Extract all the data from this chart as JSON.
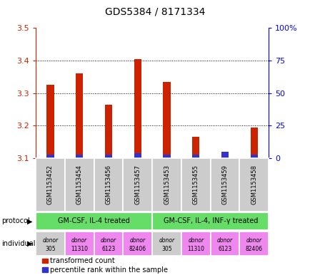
{
  "title": "GDS5384 / 8171334",
  "samples": [
    "GSM1153452",
    "GSM1153454",
    "GSM1153456",
    "GSM1153457",
    "GSM1153453",
    "GSM1153455",
    "GSM1153459",
    "GSM1153458"
  ],
  "transformed_counts": [
    3.325,
    3.36,
    3.265,
    3.405,
    3.335,
    3.165,
    3.1,
    3.195
  ],
  "percentile_ranks": [
    3.0,
    3.0,
    3.0,
    4.0,
    3.0,
    3.0,
    5.0,
    3.0
  ],
  "bar_base": 3.1,
  "ylim": [
    3.1,
    3.5
  ],
  "y_ticks_left": [
    3.1,
    3.2,
    3.3,
    3.4,
    3.5
  ],
  "y_ticks_right": [
    0,
    25,
    50,
    75,
    100
  ],
  "red_color": "#cc2200",
  "blue_color": "#3333cc",
  "protocol_groups": [
    {
      "label": "GM-CSF, IL-4 treated",
      "start": 0,
      "end": 3
    },
    {
      "label": "GM-CSF, IL-4, INF-γ treated",
      "start": 4,
      "end": 7
    }
  ],
  "protocol_bg": "#66dd66",
  "individual_labels": [
    [
      "donor",
      "305"
    ],
    [
      "donor",
      "11310"
    ],
    [
      "donor",
      "6123"
    ],
    [
      "donor",
      "82406"
    ],
    [
      "donor",
      "305"
    ],
    [
      "donor",
      "11310"
    ],
    [
      "donor",
      "6123"
    ],
    [
      "donor",
      "82406"
    ]
  ],
  "individual_colors": [
    "#cccccc",
    "#ee88ee",
    "#ee88ee",
    "#ee88ee",
    "#cccccc",
    "#ee88ee",
    "#ee88ee",
    "#ee88ee"
  ],
  "sample_bg_color": "#cccccc",
  "legend_red_label": "transformed count",
  "legend_blue_label": "percentile rank within the sample",
  "bar_width": 0.25,
  "grid_color": "#000000",
  "axis_bg": "#ffffff",
  "border_color": "#888888"
}
